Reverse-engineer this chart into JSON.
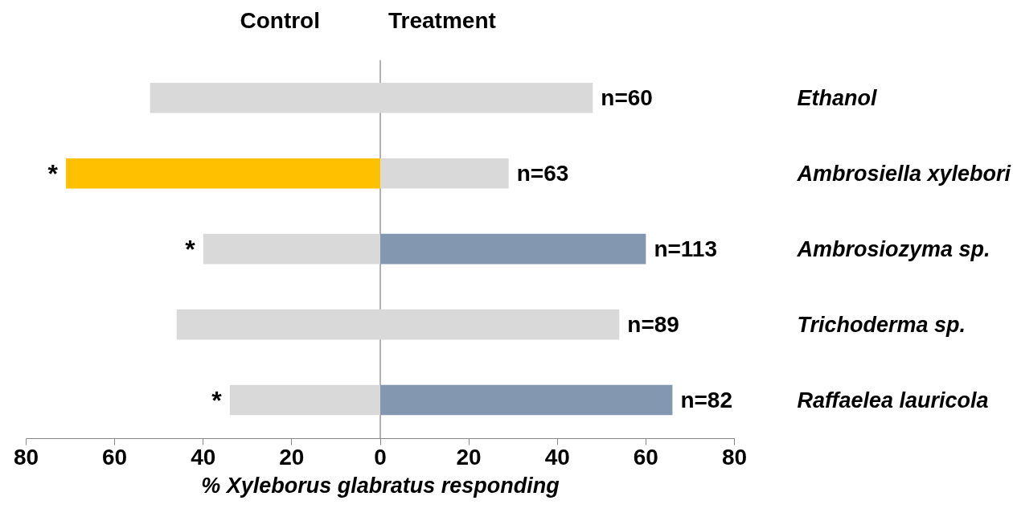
{
  "chart_data": {
    "type": "bar",
    "orientation": "horizontal",
    "stacked": true,
    "categories": [
      "Ethanol",
      "Ambrosiella xylebori",
      "Ambrosiozyma sp.",
      "Trichoderma sp.",
      "Raffaelea lauricola"
    ],
    "series": [
      {
        "name": "Control",
        "colors": [
          "#d9d9d9",
          "#ffc000",
          "#d9d9d9",
          "#d9d9d9",
          "#d9d9d9"
        ],
        "values": [
          -52,
          -71,
          -40,
          -46,
          -34
        ]
      },
      {
        "name": "Treatment",
        "colors": [
          "#d9d9d9",
          "#d9d9d9",
          "#8497b0",
          "#d9d9d9",
          "#8497b0"
        ],
        "values": [
          48,
          29,
          60,
          54,
          66
        ]
      }
    ],
    "annotations": [
      {
        "text": "n=60",
        "x": 48,
        "y": "Ethanol"
      },
      {
        "text": "n=63",
        "x": 29,
        "y": "Ambrosiella xylebori"
      },
      {
        "text": "n=113",
        "x": 60,
        "y": "Ambrosiozyma sp."
      },
      {
        "text": "n=89",
        "x": 54,
        "y": "Trichoderma sp."
      },
      {
        "text": "n=82",
        "x": 66,
        "y": "Raffaelea lauricola"
      },
      {
        "text": "*",
        "x": -71,
        "y": "Ambrosiella xylebori"
      },
      {
        "text": "*",
        "x": -40,
        "y": "Ambrosiozyma sp."
      },
      {
        "text": "*",
        "x": -34,
        "y": "Raffaelea lauricola"
      }
    ],
    "xlabel": "% Xyleborus glabratus responding",
    "xlim": [
      -80,
      80
    ],
    "xticks": [
      {
        "value": -80,
        "label": "80"
      },
      {
        "value": -60,
        "label": "60"
      },
      {
        "value": -40,
        "label": "40"
      },
      {
        "value": -20,
        "label": "20"
      },
      0,
      20,
      40,
      60,
      80
    ],
    "ref_lines": [
      {
        "axis": "x",
        "value": 0,
        "color": "#7f7f7f"
      }
    ],
    "grid": false,
    "legend": "top"
  }
}
